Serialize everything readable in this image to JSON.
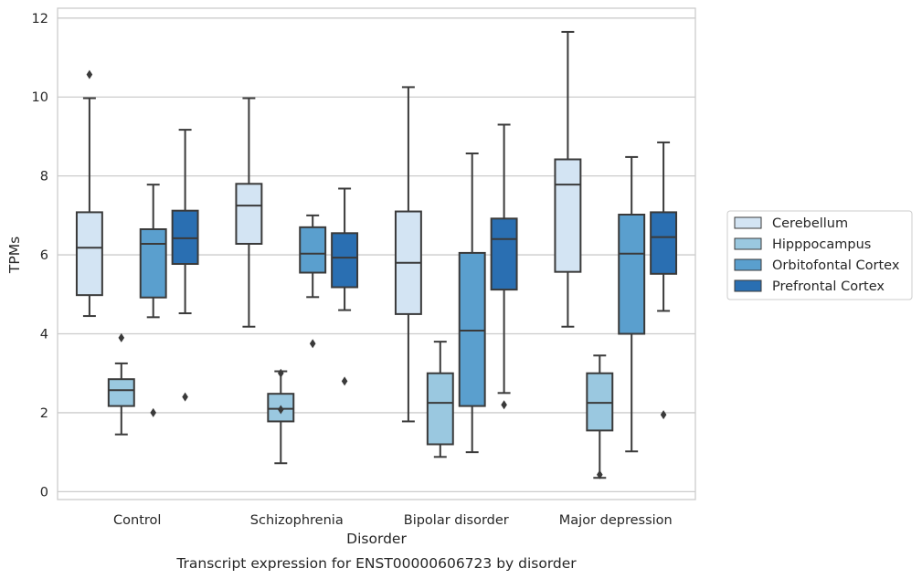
{
  "chart_data": {
    "type": "box",
    "title": "",
    "caption": "Transcript expression for ENST00000606723 by disorder",
    "xlabel": "Disorder",
    "ylabel": "TPMs",
    "ylim": [
      -0.2,
      12.25
    ],
    "yticks": [
      0,
      2,
      4,
      6,
      8,
      10,
      12
    ],
    "grid": "horizontal",
    "legend_position": "right",
    "categories": [
      "Control",
      "Schizophrenia",
      "Bipolar disorder",
      "Major depression"
    ],
    "series": [
      {
        "name": "Cerebellum",
        "color": "#d3e4f3",
        "boxes": [
          {
            "whisker_low": 4.45,
            "q1": 4.98,
            "median": 6.18,
            "q3": 7.08,
            "whisker_high": 9.97,
            "outliers": [
              10.57
            ]
          },
          {
            "whisker_low": 4.18,
            "q1": 6.28,
            "median": 7.25,
            "q3": 7.8,
            "whisker_high": 9.97,
            "outliers": []
          },
          {
            "whisker_low": 1.78,
            "q1": 4.5,
            "median": 5.8,
            "q3": 7.1,
            "whisker_high": 10.25,
            "outliers": []
          },
          {
            "whisker_low": 4.18,
            "q1": 5.57,
            "median": 7.78,
            "q3": 8.42,
            "whisker_high": 11.65,
            "outliers": []
          }
        ]
      },
      {
        "name": "Hipppocampus",
        "color": "#9ac8e0",
        "boxes": [
          {
            "whisker_low": 1.45,
            "q1": 2.17,
            "median": 2.57,
            "q3": 2.85,
            "whisker_high": 3.25,
            "outliers": [
              3.9
            ]
          },
          {
            "whisker_low": 0.72,
            "q1": 1.78,
            "median": 2.1,
            "q3": 2.48,
            "whisker_high": 3.05,
            "outliers": [
              3.0,
              2.08
            ]
          },
          {
            "whisker_low": 0.88,
            "q1": 1.2,
            "median": 2.25,
            "q3": 3.0,
            "whisker_high": 3.8,
            "outliers": []
          },
          {
            "whisker_low": 0.35,
            "q1": 1.55,
            "median": 2.25,
            "q3": 3.0,
            "whisker_high": 3.45,
            "outliers": [
              0.43
            ]
          }
        ]
      },
      {
        "name": "Orbitofontal Cortex",
        "color": "#5a9fce",
        "boxes": [
          {
            "whisker_low": 4.42,
            "q1": 4.92,
            "median": 6.28,
            "q3": 6.65,
            "whisker_high": 7.78,
            "outliers": [
              2.0
            ]
          },
          {
            "whisker_low": 4.93,
            "q1": 5.55,
            "median": 6.03,
            "q3": 6.7,
            "whisker_high": 7.0,
            "outliers": [
              3.75
            ]
          },
          {
            "whisker_low": 1.0,
            "q1": 2.17,
            "median": 4.08,
            "q3": 6.05,
            "whisker_high": 8.57,
            "outliers": []
          },
          {
            "whisker_low": 1.02,
            "q1": 4.0,
            "median": 6.03,
            "q3": 7.02,
            "whisker_high": 8.48,
            "outliers": []
          }
        ]
      },
      {
        "name": "Prefrontal Cortex",
        "color": "#2a6fb2",
        "boxes": [
          {
            "whisker_low": 4.52,
            "q1": 5.77,
            "median": 6.42,
            "q3": 7.12,
            "whisker_high": 9.17,
            "outliers": [
              2.4
            ]
          },
          {
            "whisker_low": 4.6,
            "q1": 5.18,
            "median": 5.93,
            "q3": 6.55,
            "whisker_high": 7.68,
            "outliers": [
              2.8
            ]
          },
          {
            "whisker_low": 2.5,
            "q1": 5.12,
            "median": 6.4,
            "q3": 6.92,
            "whisker_high": 9.3,
            "outliers": [
              2.2
            ]
          },
          {
            "whisker_low": 4.58,
            "q1": 5.52,
            "median": 6.45,
            "q3": 7.08,
            "whisker_high": 8.85,
            "outliers": [
              1.95
            ]
          }
        ]
      }
    ]
  }
}
